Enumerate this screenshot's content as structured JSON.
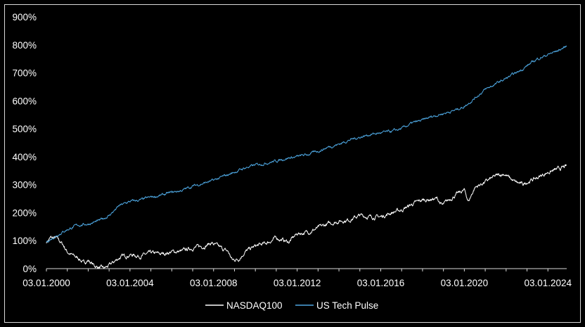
{
  "chart_data": {
    "type": "line",
    "title": "",
    "xlabel": "",
    "ylabel": "",
    "x_ticks": [
      "03.01.2000",
      "03.01.2004",
      "03.01.2008",
      "03.01.2012",
      "03.01.2016",
      "03.01.2020",
      "03.01.2024"
    ],
    "y_ticks": [
      "0%",
      "100%",
      "200%",
      "300%",
      "400%",
      "500%",
      "600%",
      "700%",
      "800%",
      "900%"
    ],
    "xlim": [
      2000.0,
      2024.9
    ],
    "ylim": [
      0,
      900
    ],
    "grid": false,
    "legend_position": "bottom",
    "series": [
      {
        "name": "NASDAQ100",
        "color": "#ffffff",
        "x": [
          2000.0,
          2000.2,
          2000.5,
          2000.8,
          2001.0,
          2001.3,
          2001.6,
          2001.75,
          2002.0,
          2002.3,
          2002.5,
          2002.75,
          2003.0,
          2003.5,
          2004.0,
          2004.5,
          2005.0,
          2005.5,
          2006.0,
          2006.5,
          2007.0,
          2007.5,
          2007.9,
          2008.3,
          2008.7,
          2008.9,
          2009.2,
          2009.5,
          2010.0,
          2010.5,
          2011.0,
          2011.6,
          2012.0,
          2012.5,
          2013.0,
          2013.5,
          2014.0,
          2014.5,
          2015.0,
          2015.5,
          2016.0,
          2016.5,
          2017.0,
          2017.5,
          2018.0,
          2018.7,
          2018.95,
          2019.5,
          2020.0,
          2020.2,
          2020.5,
          2021.0,
          2021.5,
          2021.9,
          2022.4,
          2022.8,
          2023.0,
          2023.5,
          2024.0,
          2024.5,
          2024.9
        ],
        "y": [
          95,
          110,
          108,
          85,
          60,
          45,
          35,
          20,
          30,
          10,
          5,
          0,
          10,
          40,
          50,
          45,
          55,
          52,
          60,
          62,
          75,
          80,
          92,
          75,
          60,
          30,
          35,
          60,
          80,
          90,
          110,
          95,
          125,
          130,
          145,
          160,
          170,
          175,
          190,
          185,
          185,
          200,
          210,
          230,
          245,
          250,
          225,
          260,
          280,
          240,
          290,
          310,
          330,
          340,
          310,
          300,
          310,
          325,
          345,
          355,
          365
        ]
      },
      {
        "name": "US Tech Pulse",
        "color": "#4da6e0",
        "x": [
          2000.0,
          2000.5,
          2001.0,
          2001.5,
          2002.0,
          2002.5,
          2003.0,
          2003.5,
          2004.0,
          2004.5,
          2005.0,
          2005.5,
          2006.0,
          2006.5,
          2007.0,
          2007.5,
          2008.0,
          2008.5,
          2009.0,
          2009.5,
          2010.0,
          2010.5,
          2011.0,
          2011.5,
          2012.0,
          2012.5,
          2013.0,
          2013.5,
          2014.0,
          2014.5,
          2015.0,
          2015.5,
          2016.0,
          2016.5,
          2017.0,
          2017.5,
          2018.0,
          2018.5,
          2019.0,
          2019.5,
          2020.0,
          2020.5,
          2021.0,
          2021.5,
          2022.0,
          2022.5,
          2023.0,
          2023.5,
          2024.0,
          2024.5,
          2024.9
        ],
        "y": [
          95,
          120,
          140,
          155,
          160,
          170,
          190,
          225,
          240,
          245,
          255,
          262,
          272,
          280,
          295,
          305,
          315,
          330,
          345,
          360,
          370,
          378,
          385,
          395,
          400,
          408,
          420,
          435,
          445,
          460,
          470,
          480,
          485,
          490,
          500,
          520,
          530,
          545,
          555,
          565,
          580,
          610,
          640,
          660,
          680,
          700,
          725,
          750,
          765,
          780,
          795
        ]
      }
    ]
  }
}
